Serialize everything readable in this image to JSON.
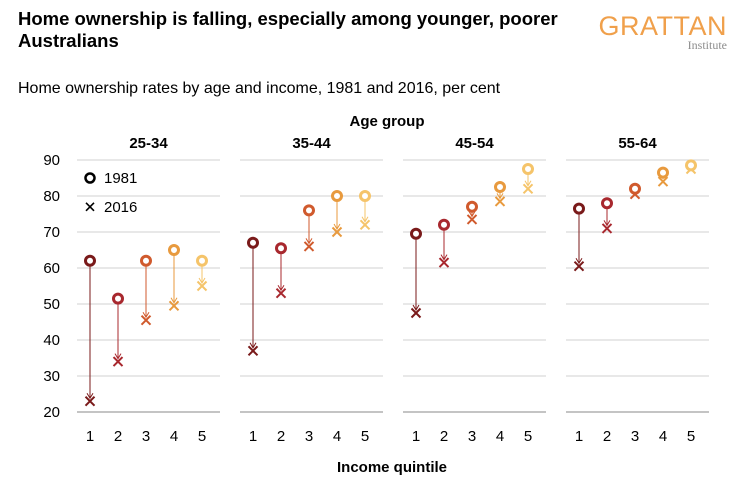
{
  "header": {
    "title": "Home ownership is falling, especially among younger, poorer Australians",
    "subtitle": "Home ownership rates by age and income, 1981 and 2016, per cent",
    "logo_main": "GRATTAN",
    "logo_sub": "Institute"
  },
  "chart_data": {
    "type": "scatter",
    "title": "Age group",
    "xlabel": "Income quintile",
    "ylabel": "",
    "ylim": [
      20,
      90
    ],
    "yticks": [
      20,
      30,
      40,
      50,
      60,
      70,
      80,
      90
    ],
    "categories": [
      "1",
      "2",
      "3",
      "4",
      "5"
    ],
    "grid": true,
    "legend": {
      "position": "top-left",
      "entries": [
        {
          "marker": "circle",
          "label": "1981"
        },
        {
          "marker": "cross",
          "label": "2016"
        }
      ]
    },
    "colors": [
      "#7a1a1a",
      "#a8282e",
      "#d05a2d",
      "#e89a3e",
      "#f5c46a"
    ],
    "panels": [
      {
        "title": "25-34",
        "series": [
          {
            "name": "1981",
            "values": [
              62,
              51.5,
              62,
              65,
              62
            ]
          },
          {
            "name": "2016",
            "values": [
              23,
              34,
              45.5,
              49.5,
              55
            ]
          }
        ]
      },
      {
        "title": "35-44",
        "series": [
          {
            "name": "1981",
            "values": [
              67,
              65.5,
              76,
              80,
              80
            ]
          },
          {
            "name": "2016",
            "values": [
              37,
              53,
              66,
              70,
              72
            ]
          }
        ]
      },
      {
        "title": "45-54",
        "series": [
          {
            "name": "1981",
            "values": [
              69.5,
              72,
              77,
              82.5,
              87.5
            ]
          },
          {
            "name": "2016",
            "values": [
              47.5,
              61.5,
              73.5,
              78.5,
              82
            ]
          }
        ]
      },
      {
        "title": "55-64",
        "series": [
          {
            "name": "1981",
            "values": [
              76.5,
              78,
              82,
              86.5,
              88.5
            ]
          },
          {
            "name": "2016",
            "values": [
              60.5,
              71,
              80.5,
              84,
              87.5
            ]
          }
        ]
      }
    ]
  }
}
